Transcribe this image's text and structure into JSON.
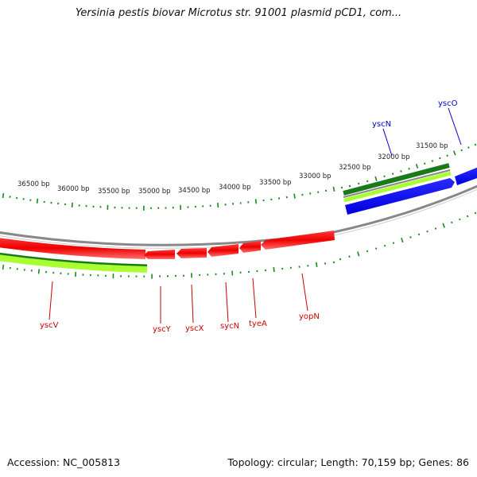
{
  "title": "Yersinia pestis biovar Microtus str. 91001 plasmid pCD1, com...",
  "footer": {
    "accession": "Accession: NC_005813",
    "stats": "Topology: circular; Length: 70,159 bp; Genes: 86"
  },
  "colors": {
    "reverse_gene": "#ff0000",
    "forward_gene": "#0000ff",
    "gc_dark": "#1a7a1a",
    "gc_light": "#aaff33",
    "backbone": "#888888",
    "tick": "#1a8a1a"
  },
  "scale": {
    "labels": [
      "36500 bp",
      "36000 bp",
      "35500 bp",
      "35000 bp",
      "34500 bp",
      "34000 bp",
      "33500 bp",
      "33000 bp",
      "32500 bp",
      "32000 bp",
      "31500 bp"
    ]
  },
  "genes": [
    {
      "name": "yscV",
      "strand": "reverse",
      "label_color": "#cc0000"
    },
    {
      "name": "yscY",
      "strand": "reverse",
      "label_color": "#cc0000"
    },
    {
      "name": "yscX",
      "strand": "reverse",
      "label_color": "#cc0000"
    },
    {
      "name": "sycN",
      "strand": "reverse",
      "label_color": "#cc0000"
    },
    {
      "name": "tyeA",
      "strand": "reverse",
      "label_color": "#cc0000"
    },
    {
      "name": "yopN",
      "strand": "reverse",
      "label_color": "#cc0000"
    },
    {
      "name": "yscN",
      "strand": "forward",
      "label_color": "#0000cc"
    },
    {
      "name": "yscO",
      "strand": "forward",
      "label_color": "#0000cc"
    }
  ]
}
